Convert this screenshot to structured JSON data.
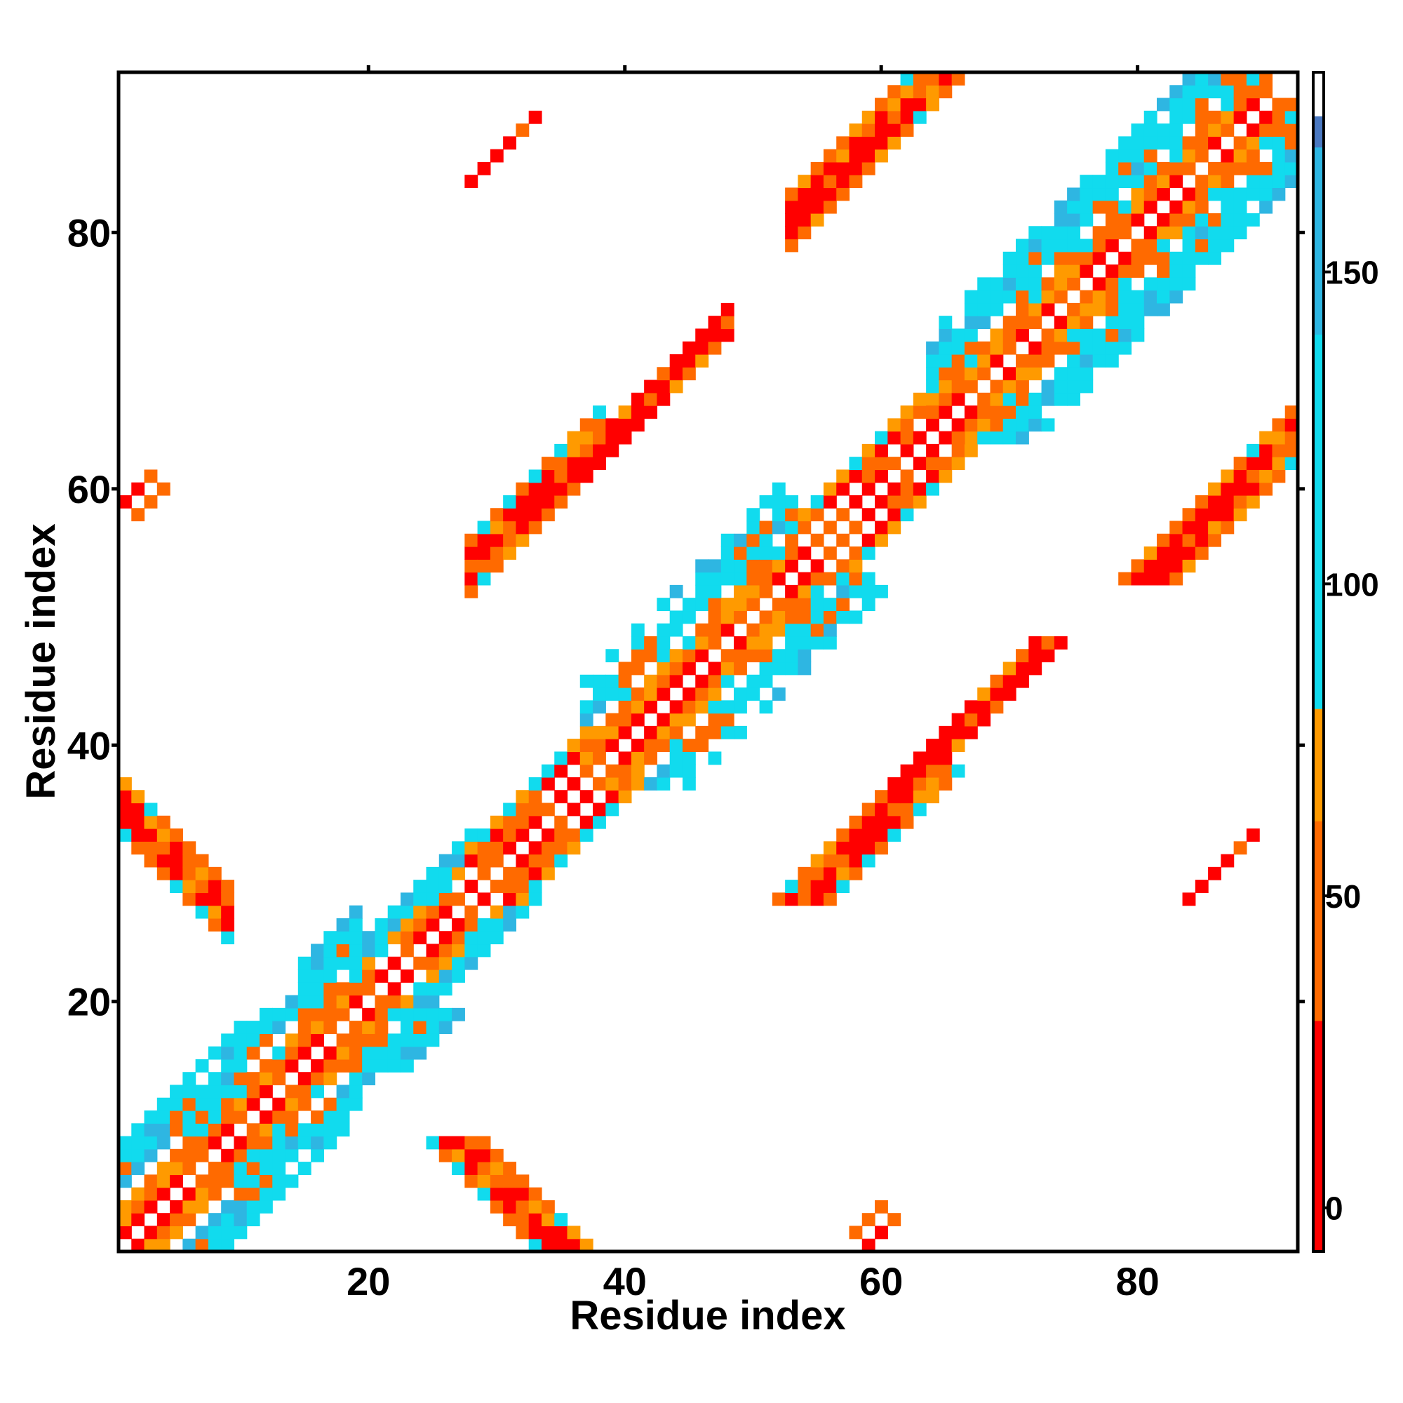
{
  "chart_data": {
    "type": "heatmap",
    "xlabel": "Residue index",
    "ylabel": "Residue index",
    "n_residues": 92,
    "xlim": [
      0.5,
      92.5
    ],
    "ylim": [
      0.5,
      92.5
    ],
    "x_ticks": [
      20,
      40,
      60,
      80
    ],
    "y_ticks": [
      20,
      40,
      60,
      80
    ],
    "colorbar": {
      "range": [
        -7,
        182
      ],
      "ticks": [
        0,
        50,
        100,
        150
      ],
      "bands": [
        {
          "from": -7,
          "to": 30,
          "color": "#ff0000"
        },
        {
          "from": 30,
          "to": 62,
          "color": "#ff6a00"
        },
        {
          "from": 62,
          "to": 80,
          "color": "#ff9a00"
        },
        {
          "from": 80,
          "to": 140,
          "color": "#11dbee"
        },
        {
          "from": 140,
          "to": 170,
          "color": "#2eb6e2"
        },
        {
          "from": 170,
          "to": 175,
          "color": "#4a78c0"
        },
        {
          "from": 175,
          "to": 182,
          "color": "#ffffff"
        }
      ]
    },
    "value_colors": {
      "red": "#ff0000",
      "orange": "#ff6a00",
      "amber": "#ff9a00",
      "cyan": "#11dbee",
      "sky": "#2eb6e2",
      "steel": "#4a78c0"
    },
    "bands_note": "contact map: main diagonal helix (|i-j|<=~9) plus off-diagonal strand pairings",
    "regions": [
      {
        "kind": "diag",
        "i_range": [
          1,
          19
        ],
        "offset_min": 1,
        "offset_max": 8,
        "pattern": "helix"
      },
      {
        "kind": "diag",
        "i_range": [
          19,
          28
        ],
        "offset_min": 1,
        "offset_max": 5,
        "pattern": "mixed"
      },
      {
        "kind": "diag",
        "i_range": [
          28,
          37
        ],
        "offset_min": 1,
        "offset_max": 4,
        "pattern": "strand"
      },
      {
        "kind": "diag",
        "i_range": [
          37,
          53
        ],
        "offset_min": 1,
        "offset_max": 8,
        "pattern": "helix"
      },
      {
        "kind": "diag",
        "i_range": [
          53,
          64
        ],
        "offset_min": 1,
        "offset_max": 4,
        "pattern": "strand"
      },
      {
        "kind": "diag",
        "i_range": [
          64,
          90
        ],
        "offset_min": 1,
        "offset_max": 8,
        "pattern": "helix"
      },
      {
        "kind": "anti",
        "x_range": [
          1,
          9
        ],
        "sum": 36,
        "halfwidth": 2
      },
      {
        "kind": "para",
        "x_range": [
          28,
          38
        ],
        "offset": 26,
        "halfwidth": 2
      },
      {
        "kind": "para",
        "x_range": [
          37,
          48
        ],
        "offset": 25,
        "halfwidth": 1
      },
      {
        "kind": "para",
        "x_range": [
          53,
          66
        ],
        "offset": 28,
        "halfwidth": 2
      },
      {
        "kind": "para",
        "x_range": [
          66,
          76
        ],
        "offset": 27,
        "halfwidth": 1
      },
      {
        "kind": "para",
        "x_range": [
          82,
          92
        ],
        "offset": 28,
        "halfwidth": 2
      },
      {
        "kind": "para",
        "x_range": [
          28,
          32
        ],
        "offset": 56,
        "halfwidth": 0
      },
      {
        "kind": "para",
        "x_range": [
          59,
          61
        ],
        "offset": -58,
        "halfwidth": 0
      },
      {
        "kind": "para",
        "x_range": [
          2,
          4
        ],
        "offset": 56,
        "halfwidth": 0
      },
      {
        "kind": "para",
        "x_range": [
          84,
          89
        ],
        "offset": -56,
        "halfwidth": 0
      }
    ]
  }
}
